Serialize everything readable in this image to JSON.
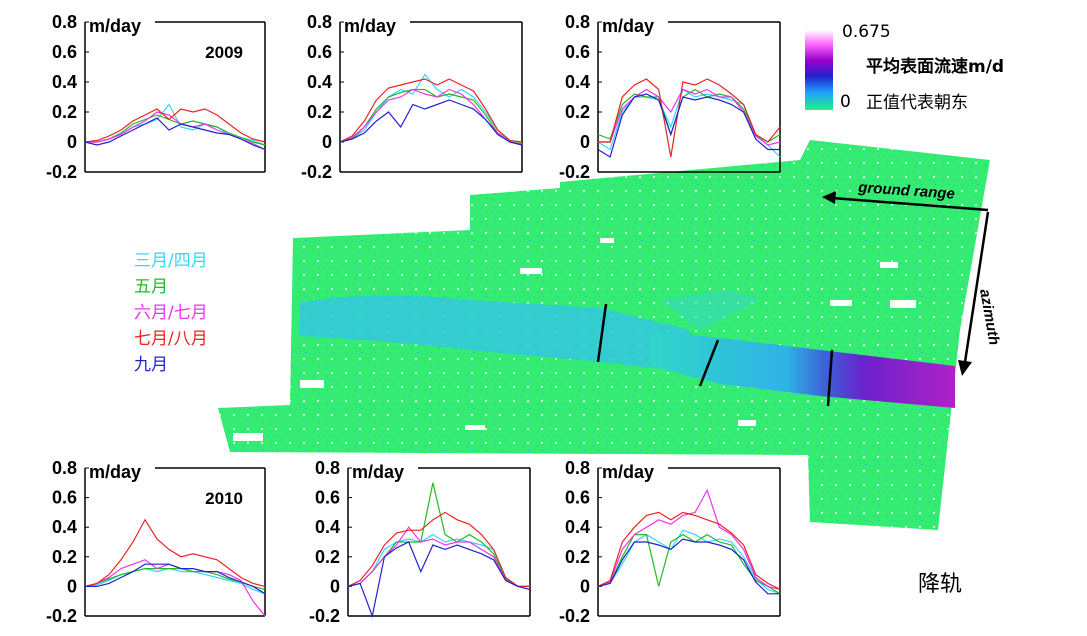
{
  "colorbar": {
    "max_label": "0.675",
    "title": "平均表面流速m/d",
    "min_label": "0",
    "note": "正值代表朝东",
    "colors": [
      "#ffffff",
      "#ff66ff",
      "#9900cc",
      "#2222cc",
      "#22a0ff",
      "#22ee88"
    ]
  },
  "legend": [
    {
      "label": "三月/四月",
      "color": "#33d6ff"
    },
    {
      "label": "五月",
      "color": "#22bb22"
    },
    {
      "label": "六月/七月",
      "color": "#ee33ee"
    },
    {
      "label": "七月/八月",
      "color": "#ee2222"
    },
    {
      "label": "九月",
      "color": "#2222cc"
    }
  ],
  "ground_range_label": "ground range",
  "azimuth_label": "azimuth",
  "track_label": "降轨",
  "map_colors": {
    "base": "#33ee77",
    "glacier_upper": "#33c8e0",
    "glacier_lower": "#7a22cc"
  },
  "chart_data": [
    {
      "type": "line",
      "unit": "m/day",
      "year_label": "2009",
      "yticks": [
        "0.8",
        "0.6",
        "0.4",
        "0.2",
        "0",
        "-0.2"
      ],
      "ylim": [
        -0.2,
        0.8
      ],
      "series": [
        {
          "color": "#33d6ff",
          "values": [
            0,
            0,
            0.02,
            0.05,
            0.1,
            0.12,
            0.15,
            0.25,
            0.1,
            0.08,
            0.12,
            0.1,
            0.05,
            0.03,
            0.01,
            -0.02
          ]
        },
        {
          "color": "#22bb22",
          "values": [
            0,
            0,
            0.02,
            0.06,
            0.12,
            0.15,
            0.18,
            0.15,
            0.12,
            0.14,
            0.12,
            0.1,
            0.06,
            0.03,
            0,
            -0.02
          ]
        },
        {
          "color": "#ee33ee",
          "values": [
            0,
            0,
            0.02,
            0.05,
            0.1,
            0.14,
            0.2,
            0.18,
            0.12,
            0.1,
            0.12,
            0.08,
            0.05,
            0.02,
            -0.01,
            -0.05
          ]
        },
        {
          "color": "#ee2222",
          "values": [
            0,
            0.01,
            0.04,
            0.08,
            0.14,
            0.18,
            0.22,
            0.15,
            0.22,
            0.2,
            0.22,
            0.18,
            0.12,
            0.06,
            0.02,
            0
          ]
        },
        {
          "color": "#2222cc",
          "values": [
            0,
            -0.02,
            0,
            0.04,
            0.08,
            0.12,
            0.16,
            0.08,
            0.12,
            0.1,
            0.08,
            0.06,
            0.05,
            0.02,
            -0.02,
            -0.05
          ]
        }
      ]
    },
    {
      "type": "line",
      "unit": "m/day",
      "year_label": "",
      "yticks": [
        "0.8",
        "0.6",
        "0.4",
        "0.2",
        "0",
        "-0.2"
      ],
      "ylim": [
        -0.2,
        0.8
      ],
      "series": [
        {
          "color": "#33d6ff",
          "values": [
            0,
            0.02,
            0.08,
            0.2,
            0.3,
            0.35,
            0.32,
            0.45,
            0.35,
            0.3,
            0.35,
            0.3,
            0.2,
            0.08,
            0,
            -0.02
          ]
        },
        {
          "color": "#22bb22",
          "values": [
            0,
            0.02,
            0.1,
            0.22,
            0.3,
            0.33,
            0.35,
            0.35,
            0.3,
            0.32,
            0.3,
            0.28,
            0.18,
            0.06,
            0,
            -0.01
          ]
        },
        {
          "color": "#ee33ee",
          "values": [
            0,
            0.03,
            0.1,
            0.2,
            0.28,
            0.3,
            0.35,
            0.32,
            0.3,
            0.35,
            0.32,
            0.25,
            0.15,
            0.06,
            0,
            -0.02
          ]
        },
        {
          "color": "#ee2222",
          "values": [
            0,
            0.04,
            0.14,
            0.28,
            0.36,
            0.38,
            0.4,
            0.42,
            0.38,
            0.42,
            0.38,
            0.34,
            0.22,
            0.08,
            0.01,
            0
          ]
        },
        {
          "color": "#2222cc",
          "values": [
            0,
            0.02,
            0.06,
            0.14,
            0.2,
            0.1,
            0.25,
            0.22,
            0.25,
            0.28,
            0.25,
            0.22,
            0.15,
            0.05,
            0,
            -0.02
          ]
        }
      ]
    },
    {
      "type": "line",
      "unit": "m/day",
      "year_label": "",
      "yticks": [
        "0.8",
        "0.6",
        "0.4",
        "0.2",
        "0",
        "-0.2"
      ],
      "ylim": [
        -0.2,
        0.8
      ],
      "series": [
        {
          "color": "#33d6ff",
          "values": [
            0,
            -0.05,
            0.2,
            0.3,
            0.3,
            0.28,
            0.1,
            0.35,
            0.3,
            0.32,
            0.3,
            0.28,
            0.25,
            0.05,
            -0.02,
            -0.1
          ]
        },
        {
          "color": "#22bb22",
          "values": [
            0.05,
            0.02,
            0.25,
            0.32,
            0.3,
            0.3,
            0.05,
            0.3,
            0.35,
            0.3,
            0.32,
            0.3,
            0.22,
            0.05,
            0,
            0.05
          ]
        },
        {
          "color": "#ee33ee",
          "values": [
            0,
            0,
            0.22,
            0.3,
            0.35,
            0.3,
            0.2,
            0.35,
            0.32,
            0.35,
            0.3,
            0.3,
            0.2,
            0.04,
            -0.02,
            0
          ]
        },
        {
          "color": "#ee2222",
          "values": [
            0,
            0,
            0.3,
            0.38,
            0.42,
            0.35,
            -0.1,
            0.4,
            0.38,
            0.42,
            0.38,
            0.32,
            0.25,
            0.05,
            0,
            0.1
          ]
        },
        {
          "color": "#2222cc",
          "values": [
            -0.05,
            -0.1,
            0.18,
            0.3,
            0.32,
            0.28,
            0.05,
            0.3,
            0.28,
            0.3,
            0.28,
            0.25,
            0.2,
            0.02,
            -0.05,
            -0.05
          ]
        }
      ]
    },
    {
      "type": "line",
      "unit": "m/day",
      "year_label": "2010",
      "yticks": [
        "0.8",
        "0.6",
        "0.4",
        "0.2",
        "0",
        "-0.2"
      ],
      "ylim": [
        -0.2,
        0.8
      ],
      "series": [
        {
          "color": "#33d6ff",
          "values": [
            0,
            0.01,
            0.04,
            0.08,
            0.1,
            0.12,
            0.1,
            0.12,
            0.1,
            0.1,
            0.08,
            0.06,
            0.04,
            0.02,
            -0.02,
            -0.05
          ]
        },
        {
          "color": "#22bb22",
          "values": [
            0,
            0.02,
            0.05,
            0.08,
            0.1,
            0.12,
            0.12,
            0.12,
            0.12,
            0.1,
            0.1,
            0.08,
            0.05,
            0.03,
            0,
            -0.02
          ]
        },
        {
          "color": "#ee33ee",
          "values": [
            0,
            0.02,
            0.06,
            0.12,
            0.15,
            0.18,
            0.12,
            0.15,
            0.12,
            0.12,
            0.1,
            0.1,
            0.08,
            0.04,
            -0.1,
            -0.2
          ]
        },
        {
          "color": "#ee2222",
          "values": [
            0,
            0.02,
            0.08,
            0.18,
            0.3,
            0.45,
            0.32,
            0.25,
            0.2,
            0.22,
            0.2,
            0.18,
            0.12,
            0.06,
            0.02,
            0
          ]
        },
        {
          "color": "#2222cc",
          "values": [
            0,
            0,
            0.02,
            0.06,
            0.1,
            0.15,
            0.15,
            0.15,
            0.12,
            0.12,
            0.1,
            0.1,
            0.06,
            0.03,
            0,
            -0.05
          ]
        }
      ]
    },
    {
      "type": "line",
      "unit": "m/day",
      "year_label": "",
      "yticks": [
        "0.8",
        "0.6",
        "0.4",
        "0.2",
        "0",
        "-0.2"
      ],
      "ylim": [
        -0.2,
        0.8
      ],
      "series": [
        {
          "color": "#33d6ff",
          "values": [
            0,
            0.02,
            0.1,
            0.25,
            0.3,
            0.32,
            0.3,
            0.35,
            0.3,
            0.32,
            0.3,
            0.28,
            0.25,
            0.05,
            0,
            -0.02
          ]
        },
        {
          "color": "#22bb22",
          "values": [
            0,
            0.02,
            0.1,
            0.2,
            0.3,
            0.3,
            0.3,
            0.7,
            0.35,
            0.3,
            0.35,
            0.3,
            0.22,
            0.05,
            0,
            0
          ]
        },
        {
          "color": "#ee33ee",
          "values": [
            0,
            0.02,
            0.1,
            0.2,
            0.28,
            0.4,
            0.3,
            0.32,
            0.28,
            0.3,
            0.3,
            0.25,
            0.2,
            0.04,
            0,
            0
          ]
        },
        {
          "color": "#ee2222",
          "values": [
            0,
            0.04,
            0.14,
            0.28,
            0.36,
            0.38,
            0.38,
            0.45,
            0.5,
            0.45,
            0.42,
            0.35,
            0.25,
            0.06,
            0,
            0
          ]
        },
        {
          "color": "#2222cc",
          "values": [
            0,
            0.02,
            -0.2,
            0.2,
            0.26,
            0.3,
            0.1,
            0.28,
            0.25,
            0.28,
            0.25,
            0.22,
            0.18,
            0.04,
            0,
            -0.02
          ]
        }
      ]
    },
    {
      "type": "line",
      "unit": "m/day",
      "year_label": "",
      "yticks": [
        "0.8",
        "0.6",
        "0.4",
        "0.2",
        "0",
        "-0.2"
      ],
      "ylim": [
        -0.2,
        0.8
      ],
      "series": [
        {
          "color": "#33d6ff",
          "values": [
            0,
            0.02,
            0.15,
            0.3,
            0.35,
            0.3,
            0.25,
            0.38,
            0.35,
            0.3,
            0.32,
            0.3,
            0.2,
            0.05,
            -0.02,
            -0.05
          ]
        },
        {
          "color": "#22bb22",
          "values": [
            0,
            0.02,
            0.2,
            0.35,
            0.35,
            0.0,
            0.3,
            0.35,
            0.3,
            0.35,
            0.3,
            0.28,
            0.15,
            0.04,
            0,
            -0.05
          ]
        },
        {
          "color": "#ee33ee",
          "values": [
            0,
            0.03,
            0.25,
            0.35,
            0.4,
            0.45,
            0.42,
            0.48,
            0.5,
            0.65,
            0.4,
            0.35,
            0.25,
            0.06,
            0,
            -0.02
          ]
        },
        {
          "color": "#ee2222",
          "values": [
            0,
            0.04,
            0.3,
            0.4,
            0.48,
            0.5,
            0.45,
            0.5,
            0.48,
            0.45,
            0.42,
            0.36,
            0.28,
            0.08,
            0.02,
            -0.02
          ]
        },
        {
          "color": "#2222cc",
          "values": [
            0,
            0.02,
            0.18,
            0.3,
            0.3,
            0.28,
            0.25,
            0.32,
            0.3,
            0.3,
            0.28,
            0.25,
            0.18,
            0.03,
            -0.05,
            -0.05
          ]
        }
      ]
    }
  ]
}
